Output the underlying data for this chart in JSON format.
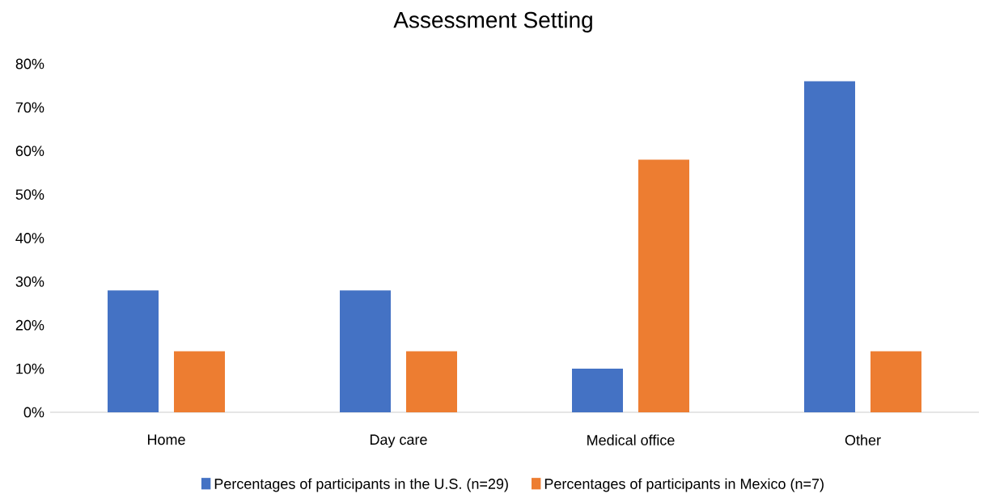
{
  "chart_data": {
    "type": "bar",
    "title": "Assessment Setting",
    "categories": [
      "Home",
      "Day care",
      "Medical office",
      "Other"
    ],
    "series": [
      {
        "name": "Percentages of participants in the U.S. (n=29)",
        "color": "#4472c4",
        "values": [
          28,
          28,
          10,
          76
        ]
      },
      {
        "name": "Percentages of participants in Mexico (n=7)",
        "color": "#ed7d31",
        "values": [
          14,
          14,
          58,
          14
        ]
      }
    ],
    "ylim": [
      0,
      80
    ],
    "yticks": [
      {
        "value": 0,
        "label": "0%"
      },
      {
        "value": 10,
        "label": "10%"
      },
      {
        "value": 20,
        "label": "20%"
      },
      {
        "value": 30,
        "label": "30%"
      },
      {
        "value": 40,
        "label": "40%"
      },
      {
        "value": 50,
        "label": "50%"
      },
      {
        "value": 60,
        "label": "60%"
      },
      {
        "value": 70,
        "label": "70%"
      },
      {
        "value": 80,
        "label": "80%"
      }
    ],
    "legend": "bottom"
  }
}
